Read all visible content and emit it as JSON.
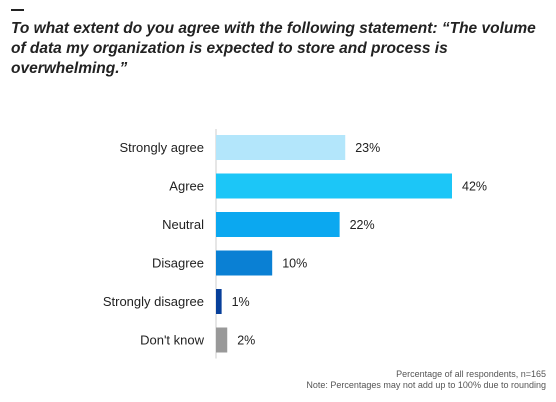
{
  "chart_data": {
    "type": "bar",
    "orientation": "horizontal",
    "title": "To what extent do you agree with the following statement: “The volume of data my organization is expected to store and process is overwhelming.”",
    "categories": [
      "Strongly agree",
      "Agree",
      "Neutral",
      "Disagree",
      "Strongly disagree",
      "Don't know"
    ],
    "values": [
      23,
      42,
      22,
      10,
      1,
      2
    ],
    "value_labels": [
      "23%",
      "42%",
      "22%",
      "10%",
      "1%",
      "2%"
    ],
    "colors": [
      "#b3e6fb",
      "#1cc6f7",
      "#0ba8f0",
      "#0a80d4",
      "#073f9a",
      "#999999"
    ],
    "xlim": [
      0,
      42
    ],
    "grid": false,
    "legend": "none"
  },
  "footnotes": {
    "line1": "Percentage of all respondents, n=165",
    "line2": "Note: Percentages may not add up to 100% due to rounding"
  }
}
